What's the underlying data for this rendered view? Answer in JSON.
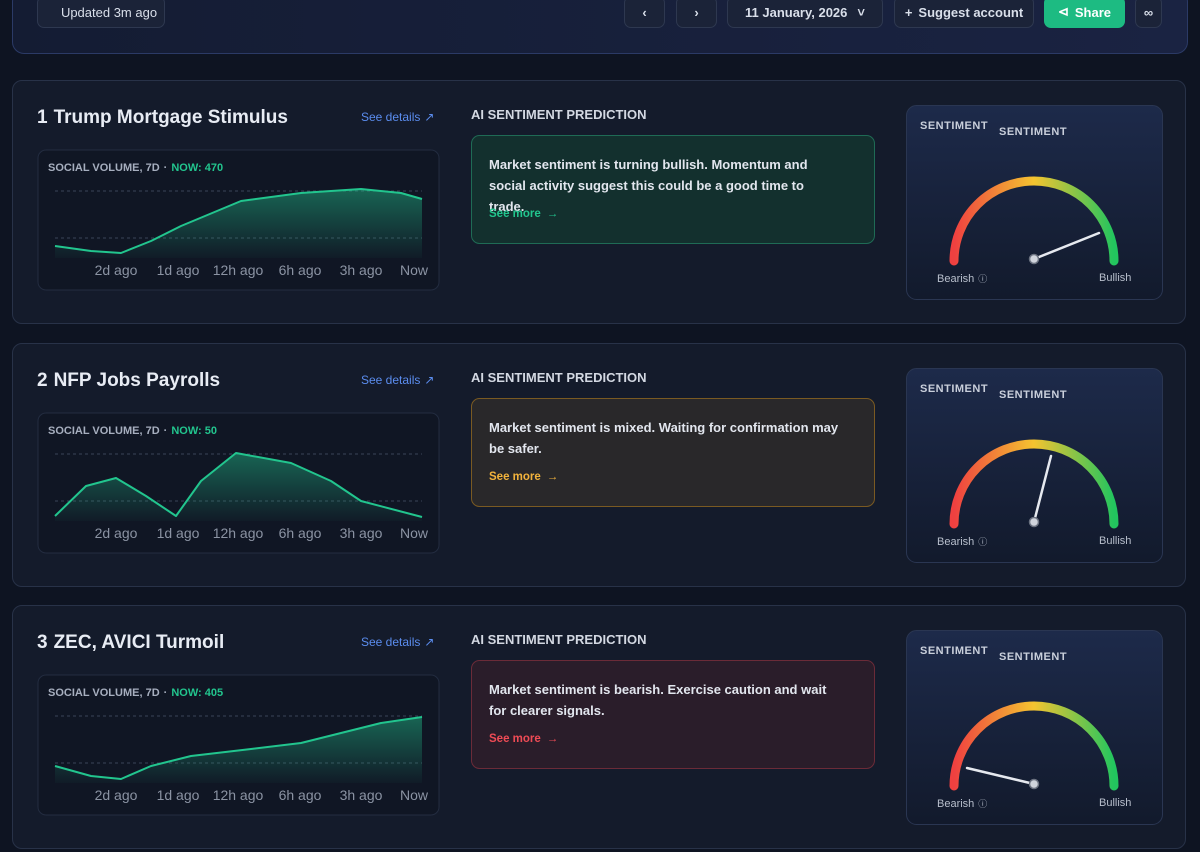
{
  "header": {
    "updated": "Updated 3m ago",
    "date": "11 January, 2026",
    "suggest": "Suggest account",
    "share": "Share"
  },
  "cards": [
    {
      "rank": "1",
      "title": "Trump Mortgage Stimulus",
      "see_details": "See details",
      "volume_label": "SOCIAL VOLUME, 7D",
      "now": "NOW: 470",
      "x_labels": [
        "2d ago",
        "1d ago",
        "12h ago",
        "6h ago",
        "3h ago",
        "Now"
      ],
      "prediction_heading": "AI SENTIMENT PREDICTION",
      "message": "Market sentiment is turning bullish. Momentum and social activity suggest this could be a good time to trade.",
      "see_more": "See more",
      "color": "#22c58e",
      "gauge_heading": "SENTIMENT",
      "gauge_subheading": "SENTIMENT",
      "bearish": "Bearish",
      "bullish": "Bullish"
    },
    {
      "rank": "2",
      "title": "NFP Jobs Payrolls",
      "see_details": "See details",
      "volume_label": "SOCIAL VOLUME, 7D",
      "now": "NOW: 50",
      "x_labels": [
        "2d ago",
        "1d ago",
        "12h ago",
        "6h ago",
        "3h ago",
        "Now"
      ],
      "prediction_heading": "AI SENTIMENT PREDICTION",
      "message": "Market sentiment is mixed. Waiting for confirmation may be safer.",
      "see_more": "See more",
      "color": "#f2b33c",
      "gauge_heading": "SENTIMENT",
      "gauge_subheading": "SENTIMENT",
      "bearish": "Bearish",
      "bullish": "Bullish"
    },
    {
      "rank": "3",
      "title": "ZEC, AVICI Turmoil",
      "see_details": "See details",
      "volume_label": "SOCIAL VOLUME, 7D",
      "now": "NOW: 405",
      "x_labels": [
        "2d ago",
        "1d ago",
        "12h ago",
        "6h ago",
        "3h ago",
        "Now"
      ],
      "prediction_heading": "AI SENTIMENT PREDICTION",
      "message": "Market sentiment is bearish. Exercise caution and wait for clearer signals.",
      "see_more": "See more",
      "color": "#ef4b55",
      "gauge_heading": "SENTIMENT",
      "gauge_subheading": "SENTIMENT",
      "bearish": "Bearish",
      "bullish": "Bullish"
    }
  ]
}
